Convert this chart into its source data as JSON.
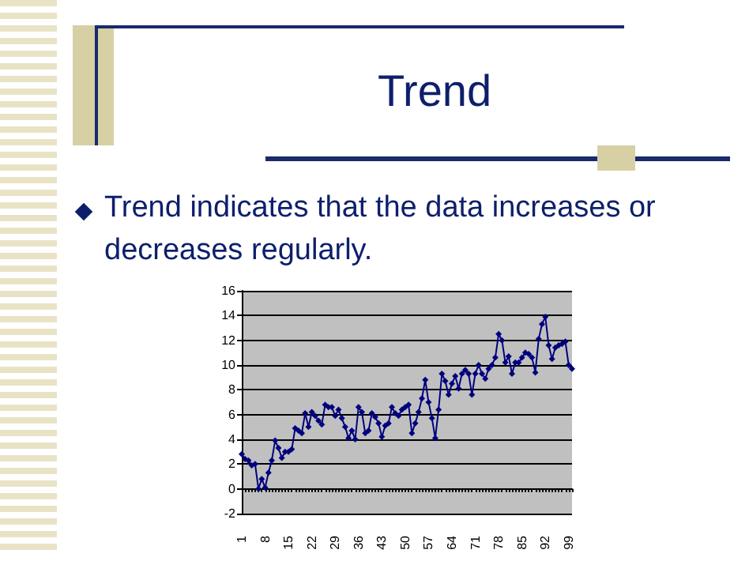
{
  "chart_data": {
    "type": "line",
    "title": "Trend",
    "annotations": [
      "Trend indicates that the data increases or decreases regularly."
    ],
    "categories": [
      "1",
      null,
      null,
      null,
      null,
      null,
      null,
      "8",
      null,
      null,
      null,
      null,
      null,
      null,
      "15",
      null,
      null,
      null,
      null,
      null,
      null,
      "22",
      null,
      null,
      null,
      null,
      null,
      null,
      "29",
      null,
      null,
      null,
      null,
      null,
      null,
      "36",
      null,
      null,
      null,
      null,
      null,
      null,
      "43",
      null,
      null,
      null,
      null,
      null,
      null,
      "50",
      null,
      null,
      null,
      null,
      null,
      null,
      "57",
      null,
      null,
      null,
      null,
      null,
      null,
      "64",
      null,
      null,
      null,
      null,
      null,
      null,
      "71",
      null,
      null,
      null,
      null,
      null,
      null,
      "78",
      null,
      null,
      null,
      null,
      null,
      null,
      "85",
      null,
      null,
      null,
      null,
      null,
      null,
      "92",
      null,
      null,
      null,
      null,
      null,
      null,
      "99",
      null
    ],
    "series": [
      {
        "color": "#000080",
        "values": [
          2.8,
          2.4,
          2.3,
          1.9,
          2.0,
          0,
          0.8,
          0.1,
          1.3,
          2.3,
          3.9,
          3.3,
          2.5,
          3.0,
          3.0,
          3.2,
          4.9,
          4.7,
          4.5,
          6.1,
          5.0,
          6.2,
          5.9,
          5.5,
          5.2,
          6.8,
          6.6,
          6.6,
          5.9,
          6.4,
          5.7,
          5.0,
          4.1,
          4.7,
          4.0,
          6.6,
          6.2,
          4.5,
          4.7,
          6.1,
          5.8,
          5.3,
          4.2,
          5.1,
          5.3,
          6.6,
          6.1,
          5.9,
          6.4,
          6.6,
          6.8,
          4.5,
          5.3,
          6.2,
          7.3,
          8.8,
          7.0,
          5.7,
          4.1,
          6.4,
          9.3,
          8.7,
          7.6,
          8.5,
          9.1,
          8.1,
          9.3,
          9.6,
          9.3,
          7.6,
          9.3,
          10.0,
          9.3,
          8.9,
          9.7,
          10.0,
          10.6,
          12.5,
          12.0,
          10.2,
          10.7,
          9.3,
          10.2,
          10.2,
          10.6,
          11.0,
          10.9,
          10.6,
          9.4,
          12.1,
          13.3,
          13.9,
          11.6,
          10.5,
          11.4,
          11.6,
          11.7,
          11.9,
          10.0,
          9.7
        ]
      }
    ],
    "ylim": [
      -2,
      16
    ],
    "yticks": [
      -2,
      0,
      2,
      4,
      6,
      8,
      10,
      12,
      14,
      16
    ],
    "grid": "y",
    "marker": "diamond",
    "line_style": "solid"
  }
}
